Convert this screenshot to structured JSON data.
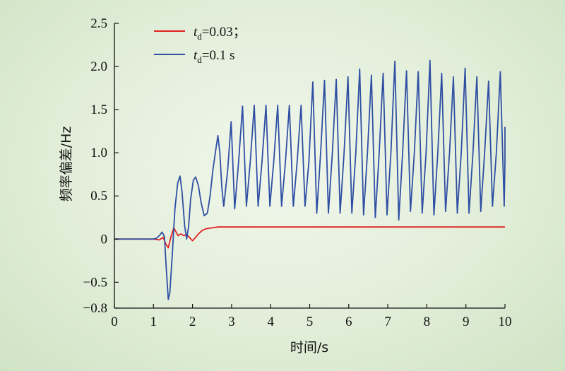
{
  "chart_data": {
    "type": "line",
    "xlabel": "时间/s",
    "ylabel": "频率偏差/Hz",
    "xlim": [
      0,
      10
    ],
    "ylim": [
      -0.8,
      2.5
    ],
    "x_ticks": [
      "0",
      "1",
      "2",
      "3",
      "4",
      "5",
      "6",
      "7",
      "8",
      "9",
      "10"
    ],
    "y_ticks": [
      {
        "value": 2.5,
        "label": "2.5"
      },
      {
        "value": 2.0,
        "label": "2.0"
      },
      {
        "value": 1.5,
        "label": "1.5"
      },
      {
        "value": 1.0,
        "label": "1.0"
      },
      {
        "value": 0.5,
        "label": "0.5"
      },
      {
        "value": 0,
        "label": "0"
      },
      {
        "value": -0.5,
        "label": "−0.5"
      },
      {
        "value": -0.8,
        "label": "−0.8"
      }
    ],
    "legend_position": "top-left",
    "series": [
      {
        "name": "td=0.03；",
        "legend_main": "t",
        "legend_sub": "d",
        "legend_rest": "=0.03；",
        "color": "#e02020",
        "points": [
          [
            0,
            0
          ],
          [
            1.0,
            0
          ],
          [
            1.15,
            -0.01
          ],
          [
            1.25,
            0.02
          ],
          [
            1.32,
            -0.06
          ],
          [
            1.38,
            -0.1
          ],
          [
            1.45,
            0.03
          ],
          [
            1.52,
            0.13
          ],
          [
            1.58,
            0.08
          ],
          [
            1.63,
            0.04
          ],
          [
            1.7,
            0.06
          ],
          [
            1.78,
            0.04
          ],
          [
            1.85,
            0.05
          ],
          [
            1.92,
            0.02
          ],
          [
            2.0,
            -0.02
          ],
          [
            2.08,
            0.02
          ],
          [
            2.15,
            0.06
          ],
          [
            2.25,
            0.1
          ],
          [
            2.35,
            0.12
          ],
          [
            2.5,
            0.13
          ],
          [
            2.65,
            0.14
          ],
          [
            2.8,
            0.14
          ],
          [
            3.0,
            0.14
          ],
          [
            4.0,
            0.14
          ],
          [
            5.0,
            0.14
          ],
          [
            6.0,
            0.14
          ],
          [
            7.0,
            0.14
          ],
          [
            8.0,
            0.14
          ],
          [
            9.0,
            0.14
          ],
          [
            10.0,
            0.14
          ]
        ]
      },
      {
        "name": "td=0.1 s",
        "legend_main": "t",
        "legend_sub": "d",
        "legend_rest": "=0.1 s",
        "color": "#2f4fa3",
        "points": [
          [
            0,
            0
          ],
          [
            1.0,
            0
          ],
          [
            1.08,
            0.01
          ],
          [
            1.15,
            0.04
          ],
          [
            1.22,
            0.08
          ],
          [
            1.28,
            0.03
          ],
          [
            1.33,
            -0.35
          ],
          [
            1.38,
            -0.7
          ],
          [
            1.42,
            -0.62
          ],
          [
            1.48,
            -0.2
          ],
          [
            1.55,
            0.35
          ],
          [
            1.62,
            0.65
          ],
          [
            1.68,
            0.73
          ],
          [
            1.73,
            0.55
          ],
          [
            1.8,
            0.15
          ],
          [
            1.85,
            0.0
          ],
          [
            1.9,
            0.15
          ],
          [
            1.95,
            0.45
          ],
          [
            2.02,
            0.68
          ],
          [
            2.08,
            0.72
          ],
          [
            2.15,
            0.62
          ],
          [
            2.22,
            0.42
          ],
          [
            2.3,
            0.27
          ],
          [
            2.38,
            0.3
          ],
          [
            2.45,
            0.5
          ],
          [
            2.52,
            0.8
          ],
          [
            2.6,
            1.05
          ],
          [
            2.65,
            1.2
          ],
          [
            2.7,
            1.0
          ],
          [
            2.75,
            0.6
          ],
          [
            2.8,
            0.38
          ],
          [
            2.9,
            0.8
          ],
          [
            2.99,
            1.36
          ],
          [
            3.08,
            0.35
          ],
          [
            3.18,
            0.9
          ],
          [
            3.28,
            1.54
          ],
          [
            3.38,
            0.38
          ],
          [
            3.48,
            0.9
          ],
          [
            3.58,
            1.55
          ],
          [
            3.68,
            0.38
          ],
          [
            3.78,
            0.9
          ],
          [
            3.88,
            1.55
          ],
          [
            3.98,
            0.38
          ],
          [
            4.08,
            0.9
          ],
          [
            4.18,
            1.55
          ],
          [
            4.28,
            0.38
          ],
          [
            4.38,
            0.9
          ],
          [
            4.48,
            1.55
          ],
          [
            4.58,
            0.38
          ],
          [
            4.68,
            0.9
          ],
          [
            4.78,
            1.55
          ],
          [
            4.88,
            0.38
          ],
          [
            4.98,
            0.9
          ],
          [
            5.08,
            1.82
          ],
          [
            5.18,
            0.3
          ],
          [
            5.28,
            1.0
          ],
          [
            5.38,
            1.84
          ],
          [
            5.48,
            0.3
          ],
          [
            5.58,
            1.0
          ],
          [
            5.68,
            1.85
          ],
          [
            5.78,
            0.3
          ],
          [
            5.88,
            1.0
          ],
          [
            5.98,
            1.88
          ],
          [
            6.08,
            0.3
          ],
          [
            6.18,
            1.0
          ],
          [
            6.28,
            1.97
          ],
          [
            6.38,
            0.28
          ],
          [
            6.48,
            1.0
          ],
          [
            6.58,
            1.9
          ],
          [
            6.68,
            0.25
          ],
          [
            6.78,
            1.0
          ],
          [
            6.88,
            1.92
          ],
          [
            6.98,
            0.28
          ],
          [
            7.08,
            1.0
          ],
          [
            7.18,
            2.06
          ],
          [
            7.28,
            0.22
          ],
          [
            7.38,
            1.0
          ],
          [
            7.48,
            1.95
          ],
          [
            7.58,
            0.32
          ],
          [
            7.68,
            1.0
          ],
          [
            7.78,
            1.94
          ],
          [
            7.88,
            0.3
          ],
          [
            7.98,
            1.0
          ],
          [
            8.08,
            2.07
          ],
          [
            8.18,
            0.28
          ],
          [
            8.28,
            1.0
          ],
          [
            8.38,
            1.92
          ],
          [
            8.48,
            0.32
          ],
          [
            8.58,
            1.0
          ],
          [
            8.68,
            1.88
          ],
          [
            8.78,
            0.3
          ],
          [
            8.88,
            1.0
          ],
          [
            8.98,
            1.98
          ],
          [
            9.08,
            0.3
          ],
          [
            9.18,
            1.0
          ],
          [
            9.28,
            1.88
          ],
          [
            9.38,
            0.32
          ],
          [
            9.48,
            1.0
          ],
          [
            9.58,
            1.83
          ],
          [
            9.68,
            0.38
          ],
          [
            9.78,
            1.0
          ],
          [
            9.88,
            1.94
          ],
          [
            9.98,
            0.38
          ],
          [
            10.05,
            0.9
          ],
          [
            10.1,
            1.3
          ]
        ]
      }
    ]
  }
}
